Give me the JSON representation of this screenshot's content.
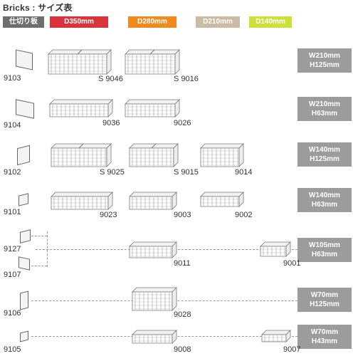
{
  "title": "Bricks : サイズ表",
  "headers": {
    "partition": {
      "label": "仕切り板",
      "color": "#6e6e6e"
    },
    "d350": {
      "label": "D350mm",
      "color": "#d9343d"
    },
    "d280": {
      "label": "D280mm",
      "color": "#ee8a1e"
    },
    "d210": {
      "label": "D210mm",
      "color": "#c9bba6"
    },
    "d140": {
      "label": "D140mm",
      "color": "#cde03a"
    }
  },
  "rows": [
    {
      "size_w": "W210mm",
      "size_h": "H125mm",
      "partition": "9103",
      "d350": "S 9046",
      "d280": "S 9016"
    },
    {
      "size_w": "W210mm",
      "size_h": "H63mm",
      "partition": "9104",
      "d350": "9036",
      "d280": "9026"
    },
    {
      "size_w": "W140mm",
      "size_h": "H125mm",
      "partition": "9102",
      "d350": "S 9025",
      "d280": "S 9015",
      "d210": "9014"
    },
    {
      "size_w": "W140mm",
      "size_h": "H63mm",
      "partition": "9101",
      "d350": "9023",
      "d280": "9003",
      "d210": "9002"
    },
    {
      "size_w": "W105mm",
      "size_h": "H63mm",
      "partition_a": "9127",
      "partition_b": "9107",
      "d280": "9011",
      "d140": "9001"
    },
    {
      "size_w": "W70mm",
      "size_h": "H125mm",
      "partition": "9106",
      "d280": "9028"
    },
    {
      "size_w": "W70mm",
      "size_h": "H43mm",
      "partition": "9105",
      "d280": "9008",
      "d140": "9007"
    }
  ]
}
